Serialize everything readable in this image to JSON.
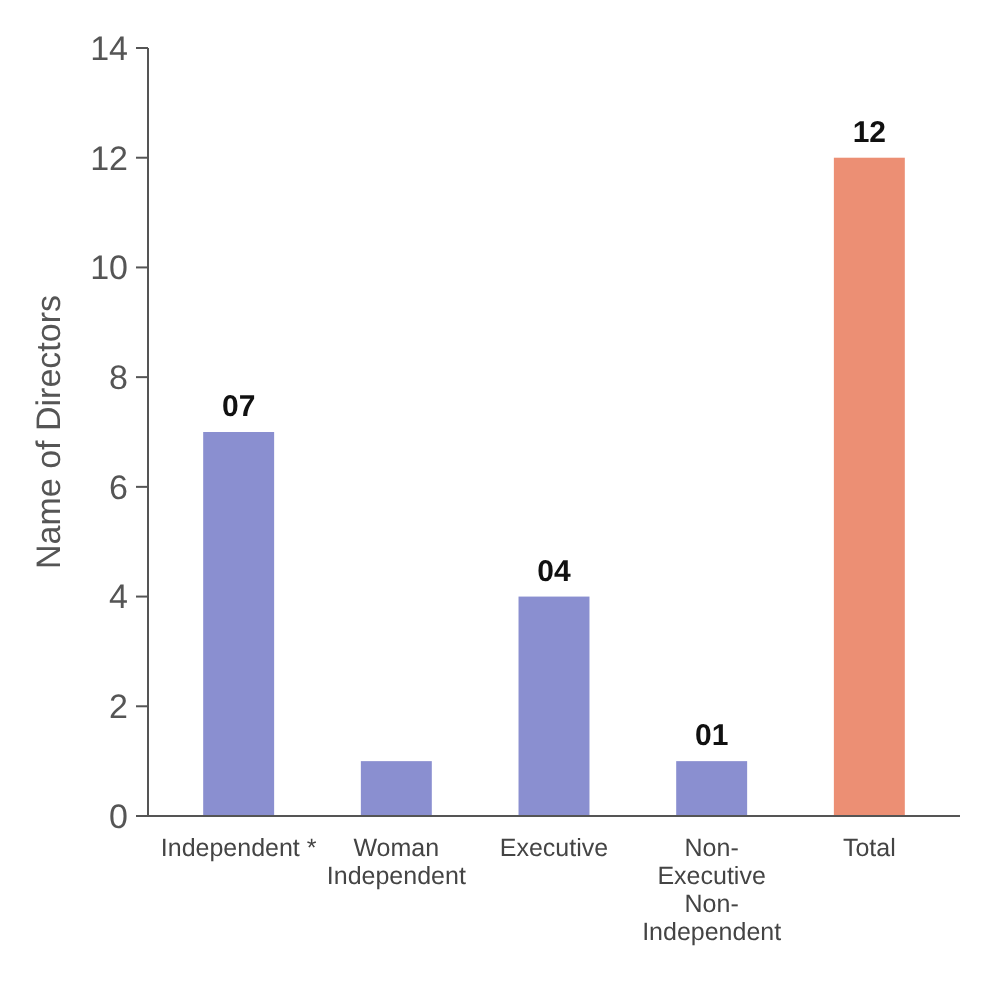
{
  "chart_data": {
    "type": "bar",
    "ylabel": "Name of Directors",
    "categories": [
      "Independent *",
      "Woman Independent",
      "Executive",
      "Non-Executive Non-Independent",
      "Total"
    ],
    "values": [
      7,
      1,
      4,
      1,
      12
    ],
    "colors": [
      "#8a8fd0",
      "#8a8fd0",
      "#8a8fd0",
      "#8a8fd0",
      "#ec8f74"
    ],
    "value_labels": [
      "07",
      null,
      "04",
      "01",
      "12"
    ],
    "ylim": [
      0,
      14
    ],
    "yticks": [
      0,
      2,
      4,
      6,
      8,
      10,
      12,
      14
    ],
    "grid": false
  }
}
